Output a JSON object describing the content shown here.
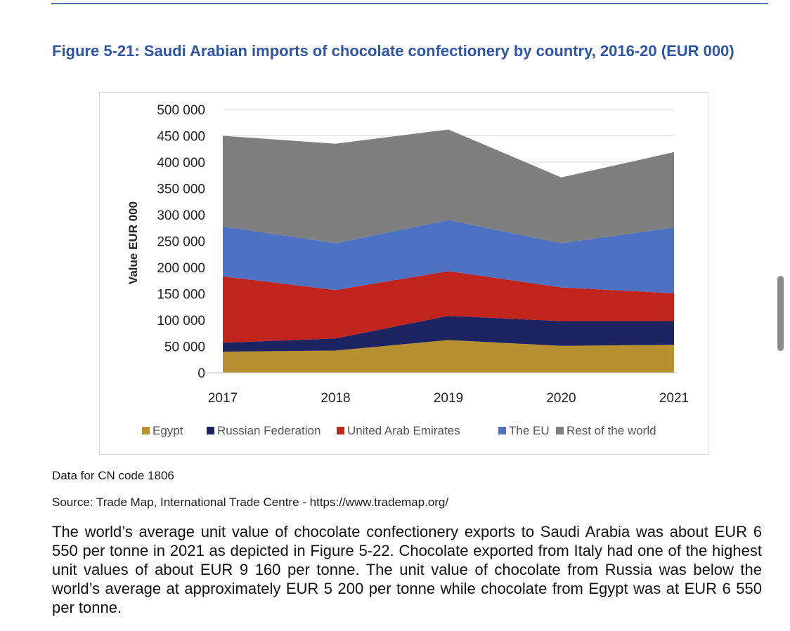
{
  "figure": {
    "title": "Figure 5-21: Saudi Arabian imports of chocolate confectionery by country, 2016-20 (EUR 000)"
  },
  "notes": {
    "data_note": "Data for CN code 1806",
    "source": "Source: Trade Map, International Trade Centre - https://www.trademap.org/"
  },
  "body_text": "The world’s average unit value of chocolate confectionery exports to Saudi Arabia was about EUR 6 550 per tonne in 2021 as depicted in Figure 5-22. Chocolate exported from Italy had one of the highest unit values of about EUR 9 160 per tonne. The unit value of chocolate from Russia was below the world’s average at approximately EUR 5 200 per tonne while chocolate from Egypt was at EUR 6 550 per tonne.",
  "chart_data": {
    "type": "area",
    "stacked": true,
    "title": "",
    "xlabel": "",
    "ylabel": "Value EUR 000",
    "categories": [
      "2017",
      "2018",
      "2019",
      "2020",
      "2021"
    ],
    "ylim": [
      0,
      500000
    ],
    "yticks": [
      0,
      50000,
      100000,
      150000,
      200000,
      250000,
      300000,
      350000,
      400000,
      450000,
      500000
    ],
    "ytick_labels": [
      "0",
      "50 000",
      "100 000",
      "150 000",
      "200 000",
      "250 000",
      "300 000",
      "350 000",
      "400 000",
      "450 000",
      "500 000"
    ],
    "grid": true,
    "legend_position": "bottom",
    "series": [
      {
        "name": "Egypt",
        "color": "#b8902f",
        "values": [
          40000,
          42000,
          62000,
          51000,
          53000
        ]
      },
      {
        "name": "Russian Federation",
        "color": "#1e2361",
        "values": [
          17000,
          23000,
          46000,
          47000,
          45000
        ]
      },
      {
        "name": "United Arab Emirates",
        "color": "#c0241c",
        "values": [
          126000,
          92000,
          85000,
          64000,
          53000
        ]
      },
      {
        "name": "The EU",
        "color": "#4d72c4",
        "values": [
          95000,
          89000,
          97000,
          84000,
          125000
        ]
      },
      {
        "name": "Rest of the world",
        "color": "#7f7f7f",
        "values": [
          172000,
          189000,
          172000,
          125000,
          143000
        ]
      }
    ]
  }
}
